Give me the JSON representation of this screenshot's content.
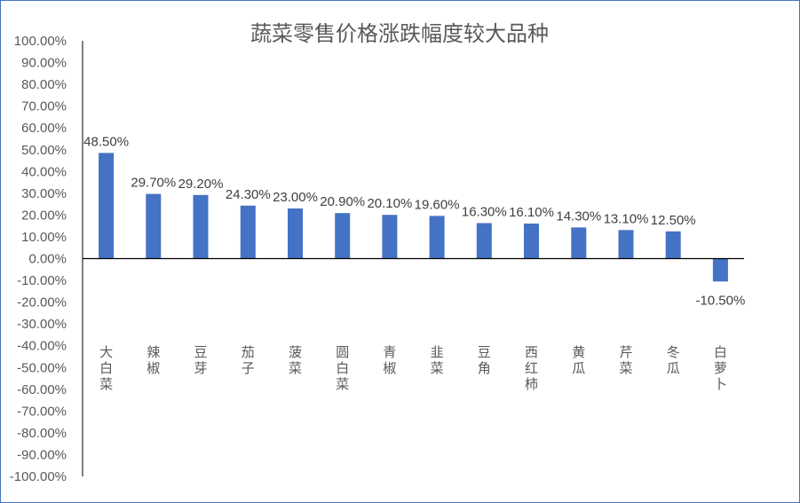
{
  "chart_data": {
    "type": "bar",
    "title": "蔬菜零售价格涨跌幅度较大品种",
    "categories": [
      "大白菜",
      "辣椒",
      "豆芽",
      "茄子",
      "菠菜",
      "圆白菜",
      "青椒",
      "韭菜",
      "豆角",
      "西红柿",
      "黄瓜",
      "芹菜",
      "冬瓜",
      "白萝卜"
    ],
    "values": [
      48.5,
      29.7,
      29.2,
      24.3,
      23.0,
      20.9,
      20.1,
      19.6,
      16.3,
      16.1,
      14.3,
      13.1,
      12.5,
      -10.5
    ],
    "data_labels": [
      "48.50%",
      "29.70%",
      "29.20%",
      "24.30%",
      "23.00%",
      "20.90%",
      "20.10%",
      "19.60%",
      "16.30%",
      "16.10%",
      "14.30%",
      "13.10%",
      "12.50%",
      "-10.50%"
    ],
    "y_ticks": [
      "100.00%",
      "90.00%",
      "80.00%",
      "70.00%",
      "60.00%",
      "50.00%",
      "40.00%",
      "30.00%",
      "20.00%",
      "10.00%",
      "0.00%",
      "-10.00%",
      "-20.00%",
      "-30.00%",
      "-40.00%",
      "-50.00%",
      "-60.00%",
      "-70.00%",
      "-80.00%",
      "-90.00%",
      "-100.00%"
    ],
    "ylim": [
      -100,
      100
    ],
    "grid": false,
    "legend": "none",
    "bar_color": "#4472C4",
    "axis_color": "#000000",
    "border_color": "#4472C4"
  }
}
